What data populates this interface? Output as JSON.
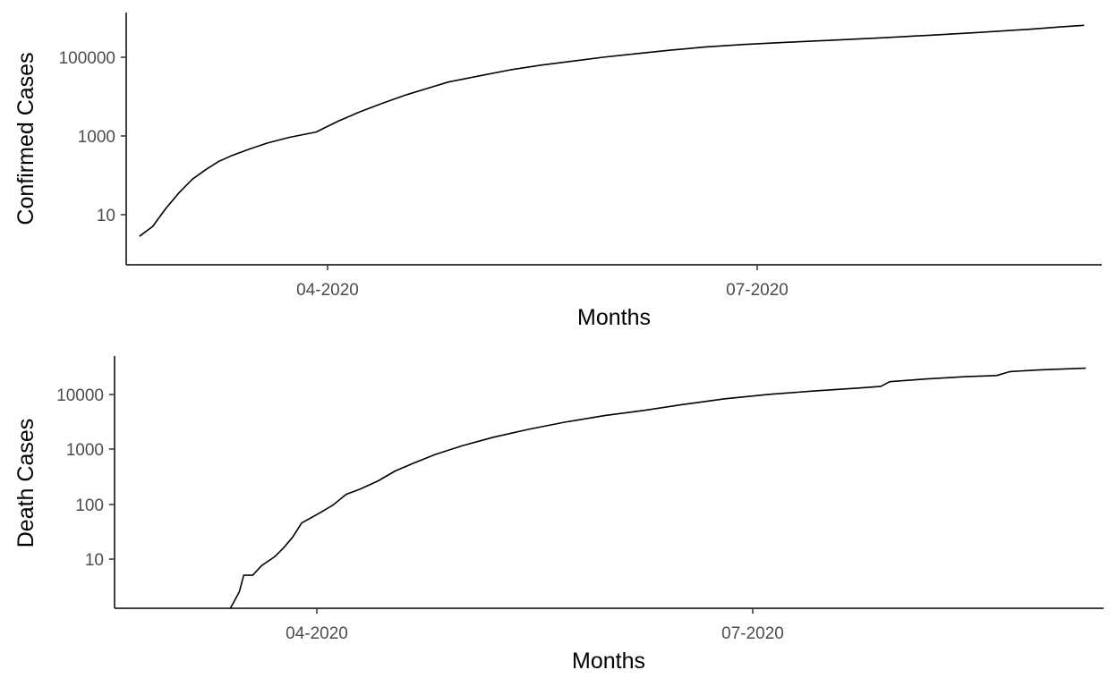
{
  "chart_data": [
    {
      "type": "line",
      "title": "",
      "xlabel": "Months",
      "ylabel": "Confirmed Cases",
      "yscale": "log10",
      "ylim": [
        1.5,
        1300000
      ],
      "xlim": [
        "2020-02-18",
        "2020-09-26"
      ],
      "grid": false,
      "legend": "none",
      "xticks": [
        {
          "label": "04-2020",
          "date": "2020-04-01"
        },
        {
          "label": "07-2020",
          "date": "2020-07-01"
        }
      ],
      "yticks": [
        {
          "label": "10",
          "value": 10
        },
        {
          "label": "1000",
          "value": 1000
        },
        {
          "label": "100000",
          "value": 100000
        }
      ],
      "series": [
        {
          "points": [
            [
              "2020-02-21",
              7
            ],
            [
              "2020-02-24",
              12
            ],
            [
              "2020-02-27",
              32
            ],
            [
              "2020-03-01",
              75
            ],
            [
              "2020-03-04",
              155
            ],
            [
              "2020-03-07",
              260
            ],
            [
              "2020-03-10",
              410
            ],
            [
              "2020-03-13",
              560
            ],
            [
              "2020-03-17",
              800
            ],
            [
              "2020-03-21",
              1100
            ],
            [
              "2020-03-26",
              1500
            ],
            [
              "2020-04-01",
              2000
            ],
            [
              "2020-04-06",
              3600
            ],
            [
              "2020-04-11",
              6000
            ],
            [
              "2020-04-16",
              9500
            ],
            [
              "2020-04-21",
              14500
            ],
            [
              "2020-04-26",
              21000
            ],
            [
              "2020-05-01",
              30000
            ],
            [
              "2020-05-08",
              42000
            ],
            [
              "2020-05-15",
              58000
            ],
            [
              "2020-05-22",
              75000
            ],
            [
              "2020-05-29",
              93000
            ],
            [
              "2020-06-05",
              115000
            ],
            [
              "2020-06-12",
              138000
            ],
            [
              "2020-06-20",
              168000
            ],
            [
              "2020-06-28",
              200000
            ],
            [
              "2020-07-07",
              230000
            ],
            [
              "2020-07-17",
              260000
            ],
            [
              "2020-07-27",
              290000
            ],
            [
              "2020-08-07",
              330000
            ],
            [
              "2020-08-18",
              380000
            ],
            [
              "2020-08-29",
              440000
            ],
            [
              "2020-09-09",
              520000
            ],
            [
              "2020-09-17",
              600000
            ],
            [
              "2020-09-22",
              650000
            ]
          ]
        }
      ]
    },
    {
      "type": "line",
      "title": "",
      "xlabel": "Months",
      "ylabel": "Death Cases",
      "yscale": "log10",
      "ylim": [
        1.25,
        50000
      ],
      "xlim": [
        "2020-02-17",
        "2020-09-26"
      ],
      "grid": false,
      "legend": "none",
      "xticks": [
        {
          "label": "04-2020",
          "date": "2020-04-01"
        },
        {
          "label": "07-2020",
          "date": "2020-07-01"
        }
      ],
      "yticks": [
        {
          "label": "10",
          "value": 10
        },
        {
          "label": "100",
          "value": 100
        },
        {
          "label": "1000",
          "value": 1000
        },
        {
          "label": "10000",
          "value": 10000
        }
      ],
      "series": [
        {
          "points": [
            [
              "2020-03-14",
              1.25
            ],
            [
              "2020-03-16",
              2.5
            ],
            [
              "2020-03-17",
              5
            ],
            [
              "2020-03-19",
              5
            ],
            [
              "2020-03-21",
              7.5
            ],
            [
              "2020-03-24",
              11
            ],
            [
              "2020-03-26",
              16
            ],
            [
              "2020-03-28",
              25
            ],
            [
              "2020-03-30",
              45
            ],
            [
              "2020-04-03",
              68
            ],
            [
              "2020-04-06",
              95
            ],
            [
              "2020-04-09",
              150
            ],
            [
              "2020-04-12",
              185
            ],
            [
              "2020-04-16",
              260
            ],
            [
              "2020-04-20",
              400
            ],
            [
              "2020-04-24",
              550
            ],
            [
              "2020-04-29",
              800
            ],
            [
              "2020-05-05",
              1150
            ],
            [
              "2020-05-12",
              1650
            ],
            [
              "2020-05-20",
              2300
            ],
            [
              "2020-05-28",
              3100
            ],
            [
              "2020-06-06",
              4100
            ],
            [
              "2020-06-15",
              5100
            ],
            [
              "2020-06-24",
              6600
            ],
            [
              "2020-07-03",
              8300
            ],
            [
              "2020-07-13",
              10000
            ],
            [
              "2020-07-23",
              11500
            ],
            [
              "2020-08-02",
              13000
            ],
            [
              "2020-08-07",
              14000
            ],
            [
              "2020-08-09",
              17000
            ],
            [
              "2020-08-17",
              19000
            ],
            [
              "2020-08-26",
              21000
            ],
            [
              "2020-09-02",
              22000
            ],
            [
              "2020-09-05",
              26000
            ],
            [
              "2020-09-12",
              28000
            ],
            [
              "2020-09-22",
              30000
            ]
          ]
        }
      ]
    }
  ]
}
